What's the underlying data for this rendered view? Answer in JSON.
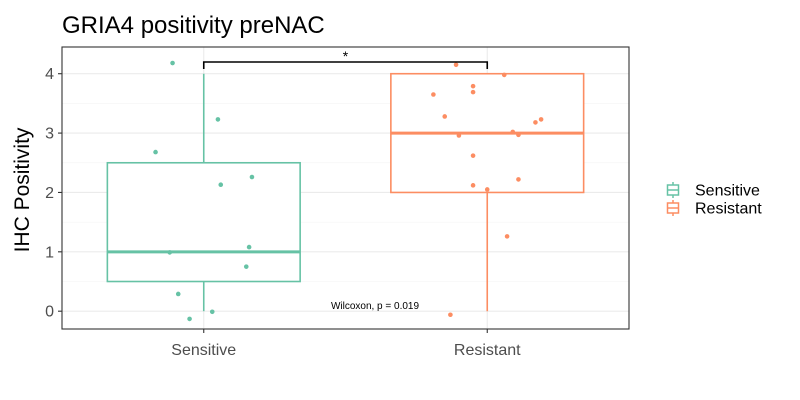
{
  "chart_data": {
    "type": "box",
    "title": "GRIA4 positivity preNAC",
    "xlabel": "",
    "ylabel": "IHC Positivity",
    "categories": [
      "Sensitive",
      "Resistant"
    ],
    "ylim": [
      -0.3,
      4.45
    ],
    "yticks": [
      0,
      1,
      2,
      3,
      4
    ],
    "grid": true,
    "legend_position": "right",
    "series": [
      {
        "name": "Sensitive",
        "color": "#66c2a5",
        "box": {
          "min": 0,
          "q1": 0.5,
          "median": 1,
          "q3": 2.5,
          "max": 4
        },
        "points": [
          {
            "dx": -0.11,
            "y": 4.18
          },
          {
            "dx": 0.05,
            "y": 3.23
          },
          {
            "dx": -0.17,
            "y": 2.68
          },
          {
            "dx": 0.17,
            "y": 2.26
          },
          {
            "dx": 0.06,
            "y": 2.13
          },
          {
            "dx": 0.16,
            "y": 1.08
          },
          {
            "dx": -0.12,
            "y": 0.99
          },
          {
            "dx": 0.15,
            "y": 0.75
          },
          {
            "dx": -0.09,
            "y": 0.29
          },
          {
            "dx": 0.03,
            "y": -0.01
          },
          {
            "dx": -0.05,
            "y": -0.13
          }
        ]
      },
      {
        "name": "Resistant",
        "color": "#fc8d62",
        "box": {
          "min": 0,
          "q1": 2,
          "median": 3,
          "q3": 4,
          "max": 4
        },
        "points": [
          {
            "dx": -0.11,
            "y": 4.15
          },
          {
            "dx": 0.06,
            "y": 3.98
          },
          {
            "dx": -0.05,
            "y": 3.79
          },
          {
            "dx": -0.05,
            "y": 3.69
          },
          {
            "dx": -0.19,
            "y": 3.65
          },
          {
            "dx": -0.15,
            "y": 3.28
          },
          {
            "dx": 0.19,
            "y": 3.23
          },
          {
            "dx": 0.17,
            "y": 3.18
          },
          {
            "dx": 0.09,
            "y": 3.02
          },
          {
            "dx": 0.11,
            "y": 2.97
          },
          {
            "dx": -0.1,
            "y": 2.96
          },
          {
            "dx": -0.05,
            "y": 2.62
          },
          {
            "dx": 0.11,
            "y": 2.22
          },
          {
            "dx": -0.05,
            "y": 2.12
          },
          {
            "dx": 0.0,
            "y": 2.05
          },
          {
            "dx": 0.07,
            "y": 1.26
          },
          {
            "dx": -0.13,
            "y": -0.06
          }
        ]
      }
    ],
    "annotations": [
      {
        "text": "Wilcoxon, p = 0.019"
      },
      {
        "text": "*"
      }
    ]
  }
}
